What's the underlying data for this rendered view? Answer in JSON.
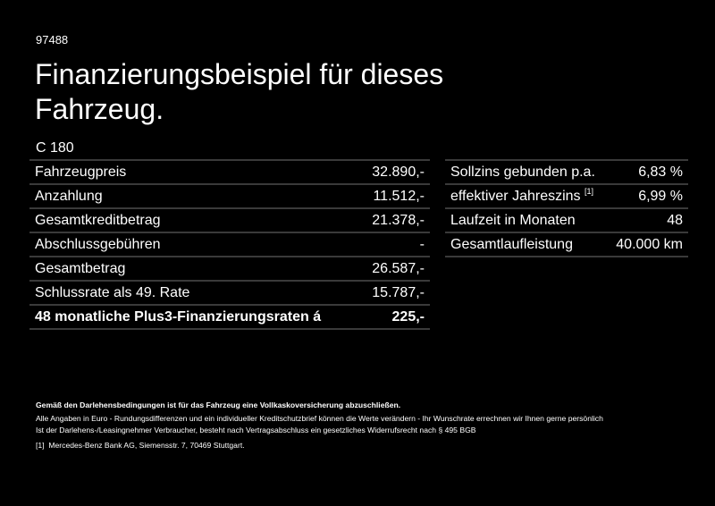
{
  "header": {
    "code": "97488",
    "title": "Finanzierungsbeispiel für dieses Fahrzeug.",
    "model": "C 180"
  },
  "left_table": [
    {
      "label": "Fahrzeugpreis",
      "value": "32.890,-"
    },
    {
      "label": "Anzahlung",
      "value": "11.512,-"
    },
    {
      "label": "Gesamtkreditbetrag",
      "value": "21.378,-"
    },
    {
      "label": "Abschlussgebühren",
      "value": "-"
    },
    {
      "label": "Gesamtbetrag",
      "value": "26.587,-"
    },
    {
      "label": "Schlussrate als 49. Rate",
      "value": "15.787,-"
    },
    {
      "label": "48 monatliche Plus3-Finanzierungsraten á",
      "value": "225,-"
    }
  ],
  "right_table": [
    {
      "label": "Sollzins gebunden p.a.",
      "value": "6,83 %"
    },
    {
      "label": "effektiver Jahreszins",
      "sup": "[1]",
      "value": "6,99 %"
    },
    {
      "label": "Laufzeit in Monaten",
      "value": "48"
    },
    {
      "label": "Gesamtlaufleistung",
      "value": "40.000 km"
    }
  ],
  "footer": {
    "bold_note": "Gemäß den Darlehensbedingungen ist für das Fahrzeug eine Vollkaskoversicherung abzuschließen.",
    "line1": "Alle Angaben in Euro - Rundungsdifferenzen und ein individueller Kreditschutzbrief können die Werte verändern - Ihr Wunschrate errechnen wir Ihnen gerne persönlich",
    "line2": "Ist der Darlehens-/Leasingnehmer Verbraucher, besteht nach Vertragsabschluss ein gesetzliches Widerrufsrecht nach § 495 BGB",
    "footnote_marker": "[1]",
    "footnote": "Mercedes-Benz Bank AG, Siemensstr. 7, 70469 Stuttgart."
  }
}
